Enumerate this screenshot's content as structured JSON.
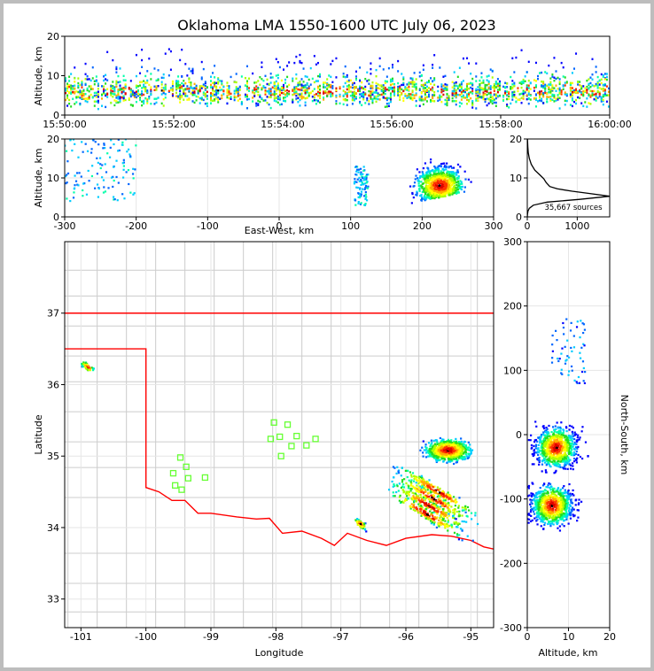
{
  "chart_data": [
    {
      "panel": "altitude-time",
      "type": "heatmap",
      "title": "Oklahoma LMA 1550-1600 UTC July 06, 2023",
      "ylabel": "Altitude, km",
      "ylim": [
        0,
        20
      ],
      "yticks": [
        "0",
        "10",
        "20"
      ],
      "xlim": [
        "15:50:00",
        "16:00:00"
      ],
      "xticks": [
        "15:50:00",
        "15:52:00",
        "15:54:00",
        "15:56:00",
        "15:58:00",
        "16:00:00"
      ],
      "altitude_band_km": [
        3,
        15
      ],
      "densest_altitude_km": 6
    },
    {
      "panel": "altitude-eastwest",
      "type": "heatmap",
      "xlabel": "East-West, km",
      "ylabel": "Altitude, km",
      "xlim": [
        -300,
        300
      ],
      "ylim": [
        0,
        20
      ],
      "xticks": [
        "-300",
        "-200",
        "-100",
        "0",
        "100",
        "200",
        "300"
      ],
      "yticks": [
        "0",
        "10",
        "20"
      ],
      "clusters": [
        {
          "x_range_km": [
            -300,
            -200
          ],
          "alt_range_km": [
            4,
            20
          ]
        },
        {
          "x_range_km": [
            105,
            125
          ],
          "alt_range_km": [
            3,
            13
          ]
        },
        {
          "x_range_km": [
            150,
            300
          ],
          "alt_range_km": [
            2,
            20
          ],
          "peak_x_km": 225,
          "peak_alt_km": 8
        }
      ]
    },
    {
      "panel": "altitude-histogram",
      "type": "line",
      "annotation": "35,667 sources",
      "xlim": [
        0,
        1650
      ],
      "ylim": [
        0,
        20
      ],
      "xticks": [
        "0",
        "1000"
      ],
      "yticks": [
        "0",
        "10",
        "20"
      ],
      "x": [
        0,
        5,
        15,
        40,
        120,
        400,
        1050,
        1650,
        1250,
        900,
        600,
        450,
        380,
        330,
        250,
        150,
        80,
        40,
        20,
        10,
        5,
        3
      ],
      "y": [
        0,
        0.8,
        1.5,
        2.2,
        3.0,
        3.8,
        4.5,
        5.3,
        6.0,
        6.6,
        7.2,
        7.8,
        8.8,
        9.8,
        10.8,
        12.0,
        13.5,
        15.0,
        16.5,
        18.0,
        19.5,
        20
      ]
    },
    {
      "panel": "plan-view",
      "type": "scatter",
      "xlabel": "Longitude",
      "ylabel": "Latitude",
      "xlim": [
        -101.25,
        -94.65
      ],
      "ylim": [
        32.6,
        38.0
      ],
      "xticks": [
        "-101",
        "-100",
        "-99",
        "-98",
        "-97",
        "-96",
        "-95"
      ],
      "yticks": [
        "33",
        "34",
        "35",
        "36",
        "37"
      ],
      "border_color": "#ff0000",
      "station_color": "#66ff33",
      "stations": [
        {
          "lon": -99.58,
          "lat": 34.76
        },
        {
          "lon": -99.47,
          "lat": 34.98
        },
        {
          "lon": -99.38,
          "lat": 34.85
        },
        {
          "lon": -99.35,
          "lat": 34.69
        },
        {
          "lon": -99.55,
          "lat": 34.59
        },
        {
          "lon": -99.45,
          "lat": 34.53
        },
        {
          "lon": -99.09,
          "lat": 34.7
        },
        {
          "lon": -98.03,
          "lat": 35.47
        },
        {
          "lon": -98.08,
          "lat": 35.24
        },
        {
          "lon": -97.94,
          "lat": 35.27
        },
        {
          "lon": -97.82,
          "lat": 35.44
        },
        {
          "lon": -97.76,
          "lat": 35.14
        },
        {
          "lon": -97.92,
          "lat": 35.0
        },
        {
          "lon": -97.68,
          "lat": 35.28
        },
        {
          "lon": -97.53,
          "lat": 35.15
        },
        {
          "lon": -97.39,
          "lat": 35.24
        }
      ],
      "storms": [
        {
          "lon": -95.35,
          "lat": 35.08,
          "extent": "large cell"
        },
        {
          "lon": -95.6,
          "lat": 34.35,
          "extent": "line"
        },
        {
          "lon": -100.9,
          "lat": 36.25,
          "extent": "small"
        },
        {
          "lon": -96.7,
          "lat": 34.05,
          "extent": "small"
        }
      ]
    },
    {
      "panel": "northsouth-altitude",
      "type": "heatmap",
      "xlabel": "Altitude, km",
      "ylabel": "North-South, km",
      "xlim": [
        0,
        20
      ],
      "ylim": [
        -300,
        300
      ],
      "xticks": [
        "0",
        "10",
        "20"
      ],
      "yticks": [
        "-300",
        "-200",
        "-100",
        "0",
        "100",
        "200",
        "300"
      ],
      "clusters": [
        {
          "ns_range_km": [
            -60,
            40
          ],
          "alt_range_km": [
            1,
            20
          ],
          "peak_ns_km": -20,
          "peak_alt_km": 7
        },
        {
          "ns_range_km": [
            -160,
            -65
          ],
          "alt_range_km": [
            3,
            20
          ],
          "peak_ns_km": -110,
          "peak_alt_km": 6
        },
        {
          "ns_range_km": [
            80,
            180
          ],
          "alt_range_km": [
            6,
            14
          ]
        }
      ]
    }
  ]
}
